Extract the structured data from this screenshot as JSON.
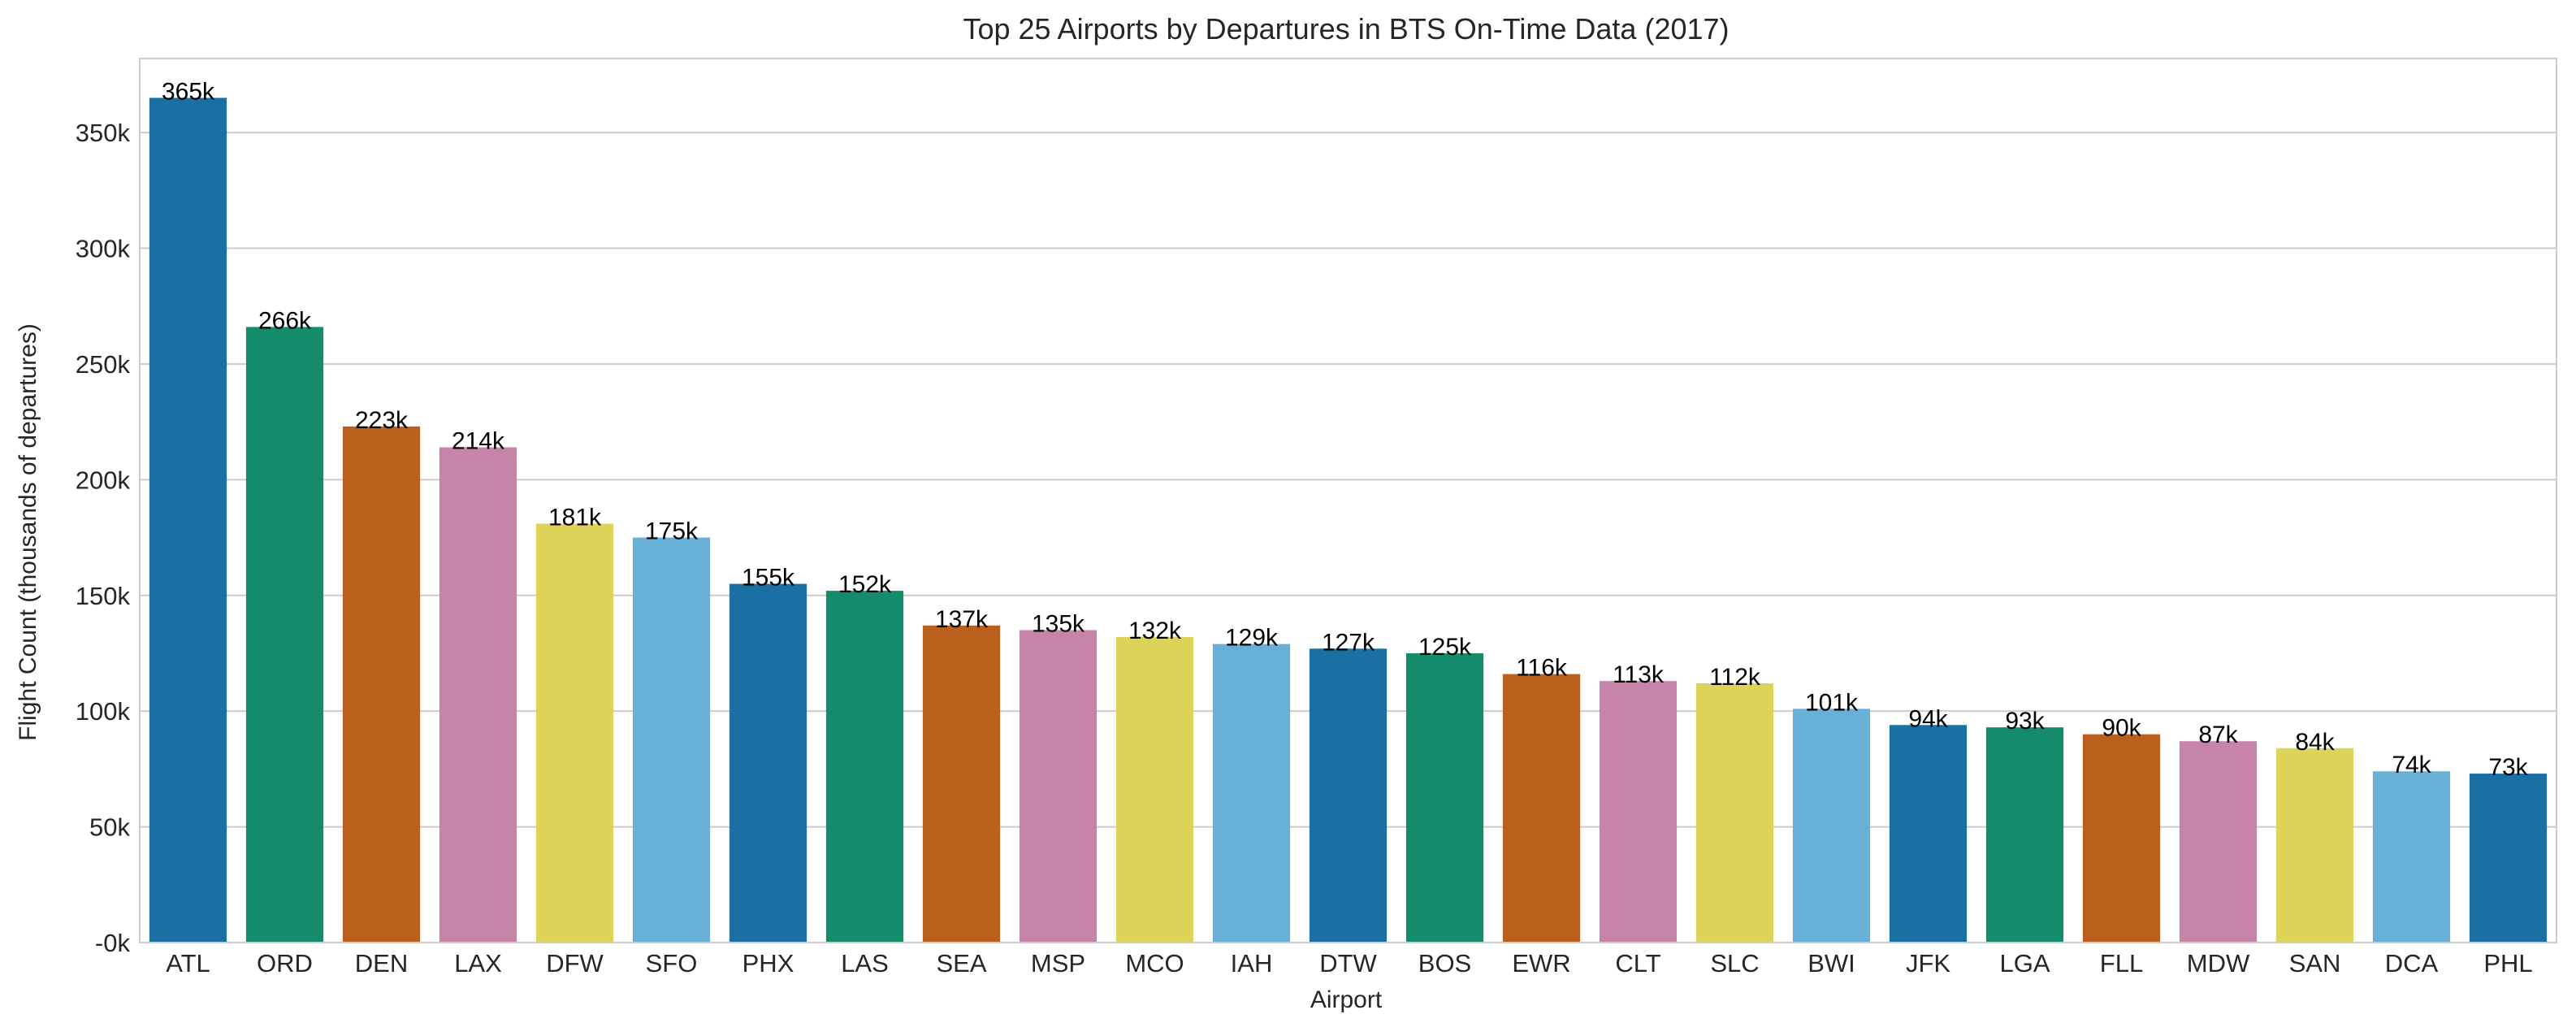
{
  "chart_data": {
    "type": "bar",
    "title": "Top 25 Airports by Departures in BTS On-Time Data (2017)",
    "xlabel": "Airport",
    "ylabel": "Flight Count (thousands of departures)",
    "categories": [
      "ATL",
      "ORD",
      "DEN",
      "LAX",
      "DFW",
      "SFO",
      "PHX",
      "LAS",
      "SEA",
      "MSP",
      "MCO",
      "IAH",
      "DTW",
      "BOS",
      "EWR",
      "CLT",
      "SLC",
      "BWI",
      "JFK",
      "LGA",
      "FLL",
      "MDW",
      "SAN",
      "DCA",
      "PHL"
    ],
    "values": [
      365,
      266,
      223,
      214,
      181,
      175,
      155,
      152,
      137,
      135,
      132,
      129,
      127,
      125,
      116,
      113,
      112,
      101,
      94,
      93,
      90,
      87,
      84,
      74,
      73
    ],
    "data_labels": [
      "365k",
      "266k",
      "223k",
      "214k",
      "181k",
      "175k",
      "155k",
      "152k",
      "137k",
      "135k",
      "132k",
      "129k",
      "127k",
      "125k",
      "116k",
      "113k",
      "112k",
      "101k",
      "94k",
      "93k",
      "90k",
      "87k",
      "84k",
      "74k",
      "73k"
    ],
    "value_unit": "thousands of departures",
    "ylim": [
      0,
      382
    ],
    "yticks": [
      0,
      50,
      100,
      150,
      200,
      250,
      300,
      350
    ],
    "ytick_labels": [
      "-0k",
      "50k",
      "100k",
      "150k",
      "200k",
      "250k",
      "300k",
      "350k"
    ],
    "grid": "horizontal",
    "legend": "none",
    "palette": [
      "#1a6fa3",
      "#148c6b",
      "#bb601c",
      "#c584a8",
      "#dcd358",
      "#69b0d9"
    ]
  }
}
